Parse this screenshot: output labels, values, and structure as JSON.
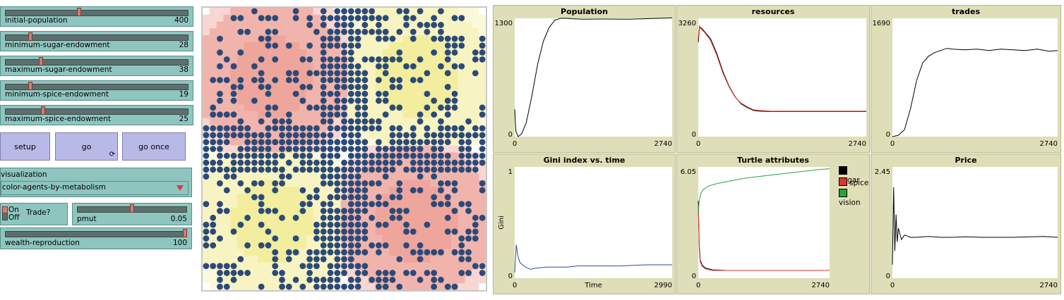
{
  "sliders": [
    {
      "label": "initial-population",
      "value": "400",
      "fraction": 0.4
    },
    {
      "label": "minimum-sugar-endowment",
      "value": "28",
      "fraction": 0.13
    },
    {
      "label": "maximum-sugar-endowment",
      "value": "38",
      "fraction": 0.19
    },
    {
      "label": "minimum-spice-endowment",
      "value": "19",
      "fraction": 0.13
    },
    {
      "label": "maximum-spice-endowment",
      "value": "25",
      "fraction": 0.2
    }
  ],
  "buttons": {
    "setup": "setup",
    "go": "go",
    "go_once": "go once",
    "go_forever_icon": "⟳"
  },
  "chooser": {
    "label": "visualization",
    "value": "color-agents-by-metabolism"
  },
  "switch": {
    "on": "On",
    "off": "Off",
    "label": "Trade?"
  },
  "pmut": {
    "label": "pmut",
    "value": "0.05",
    "fraction": 0.5
  },
  "wealth_reproduction": {
    "label": "wealth-reproduction",
    "value": "100",
    "fraction": 1.0
  },
  "colors": {
    "agent": "#2c4a78",
    "sugar_patch": "#f7f4c2",
    "spice_patch": "#f1b4ac",
    "slider_bg": "#8ec5bf",
    "button_bg": "#b9b9e8",
    "plot_bg": "#dedeb8"
  },
  "plots": [
    {
      "title": "Population",
      "ymax": "1300",
      "ymin": "0",
      "xmin": "0",
      "xmax": "2740",
      "xlabel": "",
      "ylabel": ""
    },
    {
      "title": "resources",
      "ymax": "3260",
      "ymin": "0",
      "xmin": "0",
      "xmax": "2740",
      "xlabel": "",
      "ylabel": ""
    },
    {
      "title": "trades",
      "ymax": "1690",
      "ymin": "0",
      "xmin": "0",
      "xmax": "2740",
      "xlabel": "",
      "ylabel": ""
    },
    {
      "title": "Gini index vs. time",
      "ymax": "1",
      "ymin": "0",
      "xmin": "0",
      "xmax": "2990",
      "xlabel": "Time",
      "ylabel": "Gini"
    },
    {
      "title": "Turtle attributes",
      "ymax": "6.05",
      "ymin": "0",
      "xmin": "0",
      "xmax": "2740",
      "xlabel": "",
      "ylabel": ""
    },
    {
      "title": "Price",
      "ymax": "2.45",
      "ymin": "0",
      "xmin": "0",
      "xmax": "2740",
      "xlabel": "",
      "ylabel": ""
    }
  ],
  "turtle_legend": [
    {
      "name": "sugar",
      "color": "#000000"
    },
    {
      "name": "spice",
      "color": "#d7372c"
    },
    {
      "name": "vision",
      "color": "#2aa33c"
    }
  ],
  "chart_data": [
    {
      "type": "line",
      "title": "Population",
      "ylim": [
        0,
        1300
      ],
      "xlim": [
        0,
        2740
      ],
      "series": [
        {
          "color": "#000000",
          "x": [
            0,
            20,
            60,
            120,
            200,
            300,
            400,
            500,
            600,
            700,
            800,
            900,
            1000,
            1200,
            1500,
            2000,
            2500,
            2740
          ],
          "y": [
            300,
            60,
            0,
            30,
            150,
            450,
            800,
            1050,
            1200,
            1280,
            1300,
            1300,
            1295,
            1290,
            1292,
            1290,
            1300,
            1305
          ]
        }
      ]
    },
    {
      "type": "line",
      "title": "resources",
      "ylim": [
        0,
        3260
      ],
      "xlim": [
        0,
        2740
      ],
      "series": [
        {
          "color": "#000000",
          "x": [
            0,
            20,
            50,
            100,
            200,
            300,
            400,
            500,
            600,
            700,
            800,
            900,
            1000,
            1200,
            1500,
            2000,
            2500,
            2740
          ],
          "y": [
            2600,
            3000,
            3000,
            2900,
            2700,
            2300,
            1800,
            1400,
            1100,
            900,
            800,
            720,
            700,
            690,
            690,
            690,
            690,
            690
          ]
        },
        {
          "color": "#d7372c",
          "x": [
            0,
            20,
            50,
            100,
            200,
            300,
            400,
            500,
            600,
            700,
            800,
            900,
            1000,
            1200,
            1500,
            2000,
            2500,
            2740
          ],
          "y": [
            2700,
            3050,
            2950,
            2880,
            2650,
            2250,
            1760,
            1380,
            1090,
            920,
            820,
            740,
            720,
            700,
            700,
            700,
            700,
            700
          ]
        }
      ]
    },
    {
      "type": "line",
      "title": "trades",
      "ylim": [
        0,
        1690
      ],
      "xlim": [
        0,
        2740
      ],
      "series": [
        {
          "color": "#000000",
          "x": [
            0,
            100,
            200,
            300,
            400,
            500,
            600,
            700,
            800,
            900,
            1000,
            1200,
            1400,
            1600,
            1800,
            2000,
            2200,
            2400,
            2600,
            2740
          ],
          "y": [
            0,
            20,
            100,
            400,
            800,
            1050,
            1150,
            1200,
            1230,
            1260,
            1250,
            1240,
            1250,
            1230,
            1250,
            1240,
            1230,
            1250,
            1220,
            1230
          ]
        }
      ]
    },
    {
      "type": "line",
      "title": "Gini index vs. time",
      "ylim": [
        0,
        1
      ],
      "xlim": [
        0,
        2990
      ],
      "xlabel": "Time",
      "ylabel": "Gini",
      "series": [
        {
          "color": "#2c4aa8",
          "x": [
            0,
            30,
            60,
            100,
            150,
            200,
            300,
            400,
            600,
            800,
            1000,
            1200,
            1500,
            2000,
            2500,
            2990
          ],
          "y": [
            0.05,
            0.3,
            0.2,
            0.14,
            0.12,
            0.1,
            0.08,
            0.09,
            0.1,
            0.1,
            0.1,
            0.11,
            0.11,
            0.11,
            0.12,
            0.12
          ]
        }
      ]
    },
    {
      "type": "line",
      "title": "Turtle attributes",
      "ylim": [
        0,
        6.05
      ],
      "xlim": [
        0,
        2740
      ],
      "series": [
        {
          "name": "sugar",
          "color": "#000000",
          "x": [
            0,
            20,
            40,
            80,
            150,
            300,
            600,
            1000,
            1500,
            2000,
            2740
          ],
          "y": [
            4.2,
            1.8,
            1.0,
            0.7,
            0.55,
            0.45,
            0.42,
            0.42,
            0.42,
            0.42,
            0.42
          ]
        },
        {
          "name": "spice",
          "color": "#d7372c",
          "x": [
            0,
            20,
            40,
            80,
            150,
            300,
            600,
            1000,
            1500,
            2000,
            2740
          ],
          "y": [
            4.0,
            1.6,
            0.9,
            0.65,
            0.5,
            0.42,
            0.42,
            0.42,
            0.42,
            0.42,
            0.42
          ]
        },
        {
          "name": "vision",
          "color": "#2aa33c",
          "x": [
            0,
            20,
            50,
            100,
            200,
            400,
            600,
            1000,
            1500,
            2000,
            2500,
            2740
          ],
          "y": [
            3.5,
            4.2,
            4.6,
            4.8,
            5.0,
            5.15,
            5.25,
            5.45,
            5.6,
            5.75,
            5.9,
            5.95
          ]
        }
      ]
    },
    {
      "type": "line",
      "title": "Price",
      "ylim": [
        0,
        2.45
      ],
      "xlim": [
        0,
        2740
      ],
      "series": [
        {
          "color": "#000000",
          "x": [
            0,
            20,
            40,
            60,
            80,
            100,
            150,
            200,
            300,
            400,
            600,
            800,
            1000,
            1200,
            1500,
            2000,
            2500,
            2740
          ],
          "y": [
            0.3,
            2.0,
            0.6,
            1.4,
            0.8,
            1.1,
            0.85,
            0.95,
            0.9,
            0.9,
            0.92,
            0.9,
            0.9,
            0.91,
            0.9,
            0.9,
            0.92,
            0.9
          ]
        }
      ]
    }
  ]
}
